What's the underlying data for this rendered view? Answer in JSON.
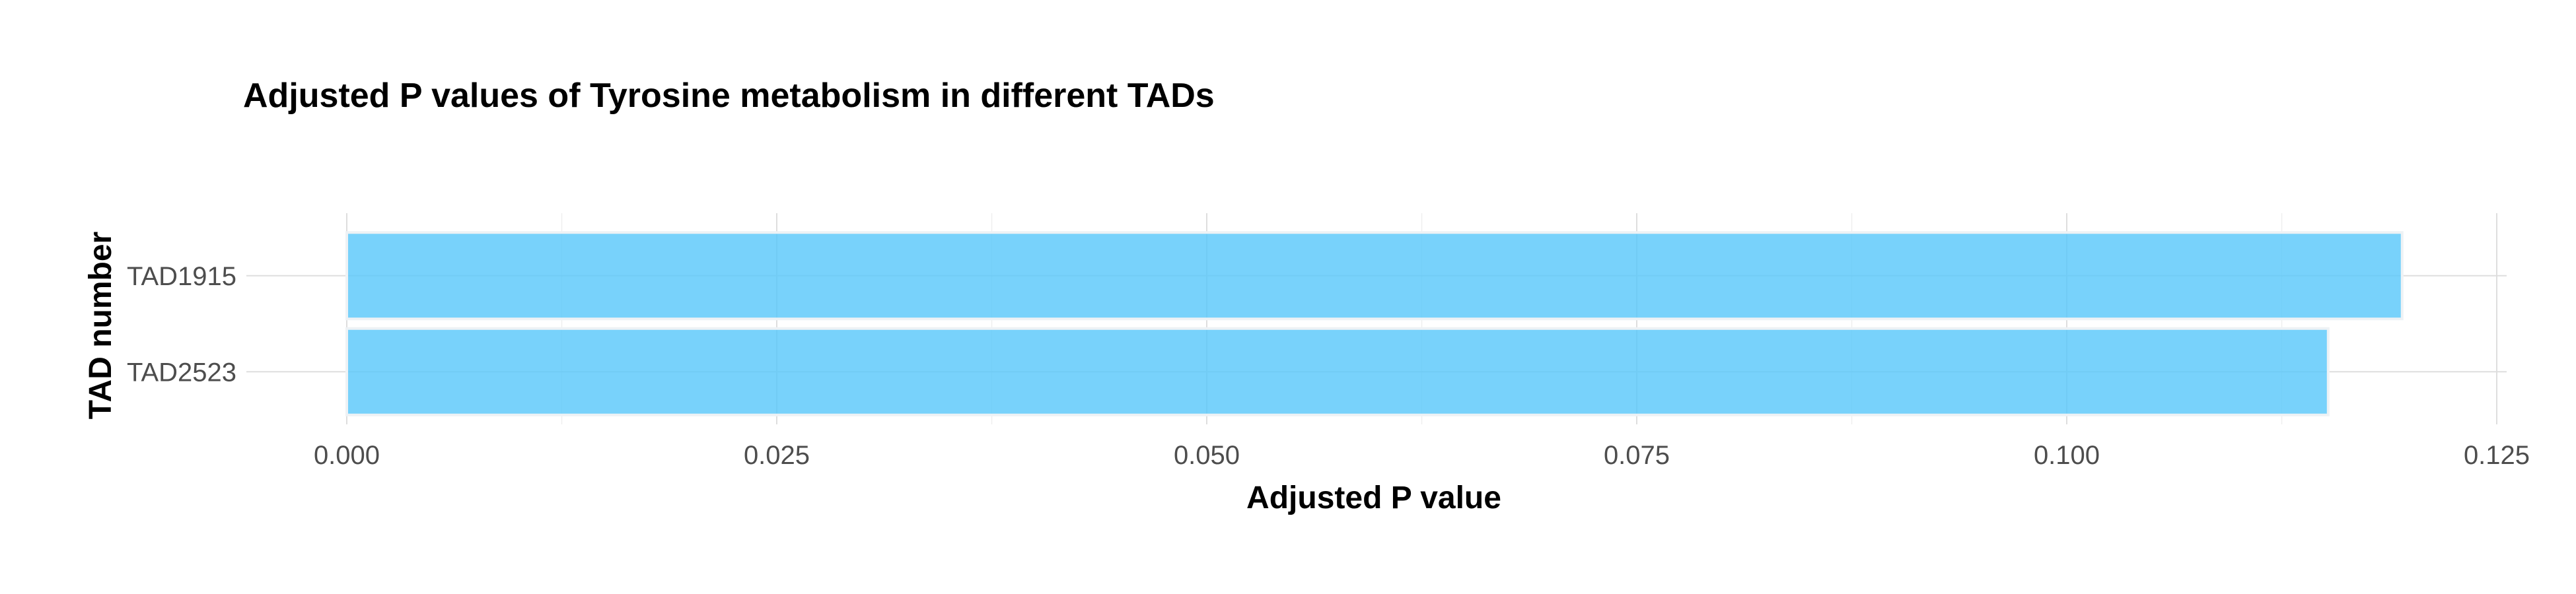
{
  "chart_data": {
    "type": "bar",
    "orientation": "horizontal",
    "title": "Adjusted P values of Tyrosine metabolism in different TADs",
    "xlabel": "Adjusted P value",
    "ylabel": "TAD number",
    "categories": [
      "TAD1915",
      "TAD2523"
    ],
    "values": [
      0.1195,
      0.1152
    ],
    "xlim": [
      0,
      0.125
    ],
    "x_ticks": [
      0.0,
      0.025,
      0.05,
      0.075,
      0.1,
      0.125
    ],
    "x_tick_labels": [
      "0.000",
      "0.025",
      "0.050",
      "0.075",
      "0.100",
      "0.125"
    ],
    "grid": true,
    "legend": "none",
    "bar_color": "#5ac8fa"
  }
}
